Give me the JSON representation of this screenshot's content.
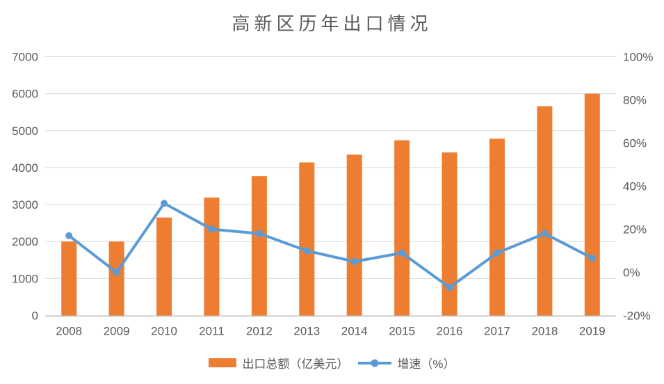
{
  "chart": {
    "title": "高新区历年出口情况"
  },
  "chart_data": {
    "type": "combo-bar-line",
    "title": "高新区历年出口情况",
    "categories": [
      "2008",
      "2009",
      "2010",
      "2011",
      "2012",
      "2013",
      "2014",
      "2015",
      "2016",
      "2017",
      "2018",
      "2019"
    ],
    "series": [
      {
        "name": "出口总额（亿美元）",
        "chart_type": "bar",
        "axis": "left",
        "color": "#ED7D31",
        "values": [
          2000,
          2000,
          2650,
          3190,
          3770,
          4140,
          4350,
          4740,
          4410,
          4780,
          5660,
          6000
        ]
      },
      {
        "name": "增速（%）",
        "chart_type": "line",
        "axis": "right",
        "color": "#5B9BD5",
        "values": [
          17,
          0,
          32,
          20,
          18,
          10,
          5,
          9,
          -7,
          9,
          18,
          6.6
        ]
      }
    ],
    "left_axis": {
      "min": 0,
      "max": 7000,
      "step": 1000,
      "tick_labels": [
        "0",
        "1000",
        "2000",
        "3000",
        "4000",
        "5000",
        "6000",
        "7000"
      ]
    },
    "right_axis": {
      "min": -20,
      "max": 100,
      "step": 20,
      "tick_labels": [
        "-20%",
        "0%",
        "20%",
        "40%",
        "60%",
        "80%",
        "100%"
      ]
    },
    "grid": true,
    "legend_position": "bottom",
    "colors": {
      "grid": "#D9D9D9",
      "axis_line": "#BFBFBF",
      "text": "#595959",
      "background": "#FFFFFF"
    }
  }
}
